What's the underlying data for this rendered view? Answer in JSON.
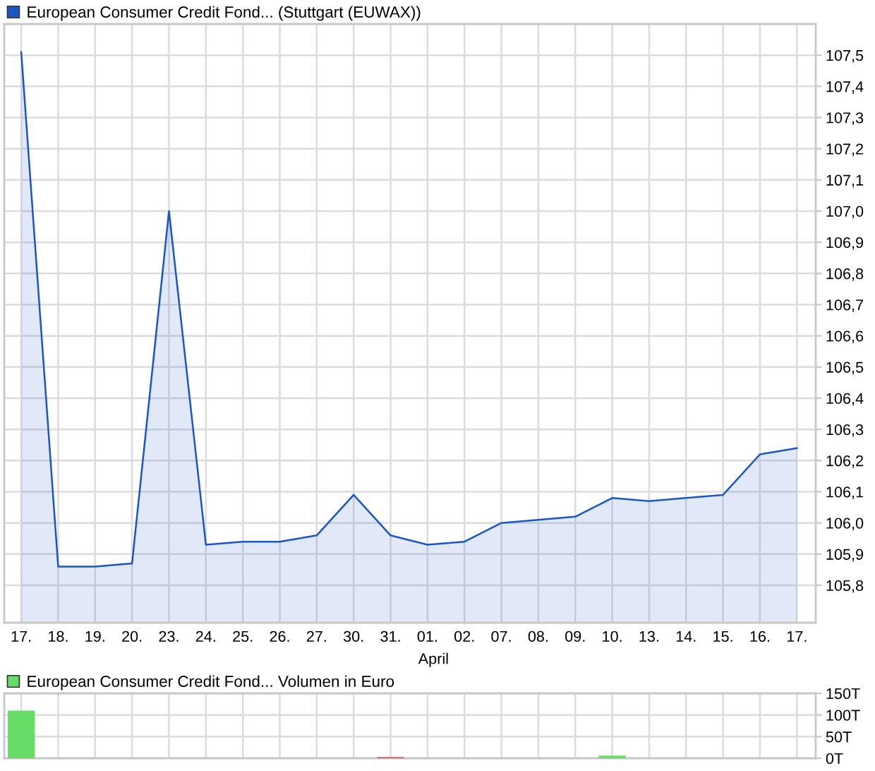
{
  "chart_data": [
    {
      "type": "area",
      "categories": [
        "17.",
        "18.",
        "19.",
        "20.",
        "23.",
        "24.",
        "25.",
        "26.",
        "27.",
        "30.",
        "31.",
        "01.",
        "02.",
        "07.",
        "08.",
        "09.",
        "10.",
        "13.",
        "14.",
        "15.",
        "16.",
        "17."
      ],
      "series": [
        {
          "name": "European Consumer Credit Fond... (Stuttgart (EUWAX))",
          "color": "#1a56c8",
          "values": [
            107.51,
            105.86,
            105.86,
            105.87,
            107.0,
            105.93,
            105.94,
            105.94,
            105.96,
            106.09,
            105.96,
            105.93,
            105.94,
            106.0,
            106.01,
            106.02,
            106.08,
            106.07,
            106.08,
            106.09,
            106.22,
            106.24
          ]
        }
      ],
      "ylim": [
        105.68,
        107.6
      ],
      "yticks": [
        {
          "value": 105.8,
          "label": "105,8"
        },
        {
          "value": 105.9,
          "label": "105,9"
        },
        {
          "value": 106.0,
          "label": "106,0"
        },
        {
          "value": 106.1,
          "label": "106,1"
        },
        {
          "value": 106.2,
          "label": "106,2"
        },
        {
          "value": 106.3,
          "label": "106,3"
        },
        {
          "value": 106.4,
          "label": "106,4"
        },
        {
          "value": 106.5,
          "label": "106,5"
        },
        {
          "value": 106.6,
          "label": "106,6"
        },
        {
          "value": 106.7,
          "label": "106,7"
        },
        {
          "value": 106.8,
          "label": "106,8"
        },
        {
          "value": 106.9,
          "label": "106,9"
        },
        {
          "value": 107.0,
          "label": "107,0"
        },
        {
          "value": 107.1,
          "label": "107,1"
        },
        {
          "value": 107.2,
          "label": "107,2"
        },
        {
          "value": 107.3,
          "label": "107,3"
        },
        {
          "value": 107.4,
          "label": "107,4"
        },
        {
          "value": 107.5,
          "label": "107,5"
        }
      ],
      "grid": true,
      "legend": "top left",
      "annotations": [
        "April"
      ]
    },
    {
      "type": "bar",
      "categories": [
        "17.",
        "18.",
        "19.",
        "20.",
        "23.",
        "24.",
        "25.",
        "26.",
        "27.",
        "30.",
        "31.",
        "01.",
        "02.",
        "07.",
        "08.",
        "09.",
        "10.",
        "13.",
        "14.",
        "15.",
        "16.",
        "17."
      ],
      "series": [
        {
          "name": "European Consumer Credit Fond... Volumen in Euro",
          "color": "#66dd66",
          "colors": [
            "#66dd66",
            null,
            null,
            null,
            null,
            null,
            null,
            null,
            null,
            null,
            "#e06060",
            null,
            null,
            null,
            null,
            null,
            "#66dd66",
            null,
            null,
            null,
            null,
            null
          ],
          "values": [
            110,
            null,
            null,
            null,
            null,
            null,
            null,
            null,
            null,
            null,
            3,
            null,
            null,
            null,
            null,
            null,
            6,
            null,
            null,
            null,
            null,
            null
          ]
        }
      ],
      "ylim": [
        0,
        150
      ],
      "yticks": [
        {
          "value": 0,
          "label": "0T"
        },
        {
          "value": 50,
          "label": "50T"
        },
        {
          "value": 100,
          "label": "100T"
        },
        {
          "value": 150,
          "label": "150T"
        }
      ],
      "grid": true,
      "legend": "top left",
      "tick_labels": "y"
    }
  ]
}
